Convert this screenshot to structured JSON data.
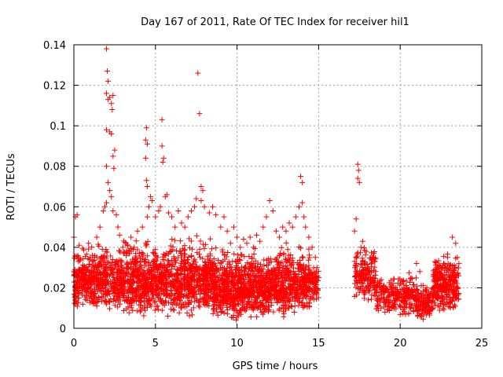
{
  "chart_data": {
    "type": "scatter",
    "title": "Day 167 of 2011, Rate Of TEC Index for receiver hil1",
    "xlabel": "GPS time / hours",
    "ylabel": "ROTI / TECUs",
    "xlim": [
      0,
      25
    ],
    "ylim": [
      0,
      0.14
    ],
    "xticks": [
      0,
      5,
      10,
      15,
      20,
      25
    ],
    "xtick_labels": [
      "0",
      "5",
      "10",
      "15",
      "20",
      "25"
    ],
    "yticks": [
      0,
      0.02,
      0.04,
      0.06,
      0.08,
      0.1,
      0.12,
      0.14
    ],
    "ytick_labels": [
      "0",
      "0.02",
      "0.04",
      "0.06",
      "0.08",
      "0.1",
      "0.12",
      "0.14"
    ],
    "grid": true,
    "marker": "+",
    "series": [
      {
        "name": "ROTI",
        "color": "#ff0000",
        "points": [
          [
            0.0,
            0.045
          ],
          [
            0.1,
            0.055
          ],
          [
            0.2,
            0.056
          ],
          [
            0.3,
            0.035
          ],
          [
            0.1,
            0.02
          ],
          [
            0.3,
            0.015
          ],
          [
            0.5,
            0.03
          ],
          [
            0.7,
            0.025
          ],
          [
            0.9,
            0.042
          ],
          [
            1.0,
            0.035
          ],
          [
            1.2,
            0.028
          ],
          [
            1.4,
            0.045
          ],
          [
            1.6,
            0.05
          ],
          [
            1.8,
            0.058
          ],
          [
            1.9,
            0.06
          ],
          [
            2.0,
            0.138
          ],
          [
            2.05,
            0.127
          ],
          [
            2.1,
            0.122
          ],
          [
            2.0,
            0.116
          ],
          [
            2.1,
            0.113
          ],
          [
            2.2,
            0.114
          ],
          [
            2.3,
            0.111
          ],
          [
            2.35,
            0.108
          ],
          [
            2.4,
            0.115
          ],
          [
            2.0,
            0.098
          ],
          [
            2.2,
            0.097
          ],
          [
            2.3,
            0.096
          ],
          [
            2.0,
            0.08
          ],
          [
            2.5,
            0.088
          ],
          [
            2.4,
            0.085
          ],
          [
            2.45,
            0.079
          ],
          [
            2.1,
            0.072
          ],
          [
            2.2,
            0.068
          ],
          [
            2.3,
            0.065
          ],
          [
            2.0,
            0.062
          ],
          [
            2.4,
            0.058
          ],
          [
            2.6,
            0.056
          ],
          [
            2.7,
            0.05
          ],
          [
            2.8,
            0.046
          ],
          [
            3.0,
            0.04
          ],
          [
            3.2,
            0.042
          ],
          [
            3.4,
            0.038
          ],
          [
            3.5,
            0.045
          ],
          [
            3.7,
            0.04
          ],
          [
            3.9,
            0.048
          ],
          [
            4.2,
            0.05
          ],
          [
            4.4,
            0.042
          ],
          [
            4.5,
            0.055
          ],
          [
            4.4,
            0.093
          ],
          [
            4.5,
            0.091
          ],
          [
            4.45,
            0.099
          ],
          [
            4.4,
            0.084
          ],
          [
            4.45,
            0.073
          ],
          [
            4.5,
            0.07
          ],
          [
            4.6,
            0.06
          ],
          [
            4.7,
            0.065
          ],
          [
            4.8,
            0.063
          ],
          [
            5.0,
            0.055
          ],
          [
            5.2,
            0.058
          ],
          [
            5.3,
            0.06
          ],
          [
            5.4,
            0.103
          ],
          [
            5.4,
            0.09
          ],
          [
            5.5,
            0.084
          ],
          [
            5.45,
            0.082
          ],
          [
            5.6,
            0.065
          ],
          [
            5.7,
            0.066
          ],
          [
            5.8,
            0.057
          ],
          [
            6.0,
            0.055
          ],
          [
            6.2,
            0.05
          ],
          [
            6.4,
            0.058
          ],
          [
            6.6,
            0.052
          ],
          [
            6.8,
            0.05
          ],
          [
            7.0,
            0.055
          ],
          [
            7.2,
            0.058
          ],
          [
            7.4,
            0.06
          ],
          [
            7.5,
            0.064
          ],
          [
            7.6,
            0.126
          ],
          [
            7.7,
            0.106
          ],
          [
            7.8,
            0.07
          ],
          [
            7.9,
            0.068
          ],
          [
            7.8,
            0.063
          ],
          [
            8.0,
            0.06
          ],
          [
            8.3,
            0.057
          ],
          [
            8.5,
            0.06
          ],
          [
            8.7,
            0.056
          ],
          [
            9.0,
            0.05
          ],
          [
            9.2,
            0.055
          ],
          [
            9.4,
            0.048
          ],
          [
            9.6,
            0.042
          ],
          [
            9.8,
            0.05
          ],
          [
            10.0,
            0.045
          ],
          [
            10.2,
            0.04
          ],
          [
            10.4,
            0.044
          ],
          [
            10.6,
            0.042
          ],
          [
            10.8,
            0.045
          ],
          [
            11.0,
            0.04
          ],
          [
            11.2,
            0.046
          ],
          [
            11.4,
            0.043
          ],
          [
            11.6,
            0.05
          ],
          [
            11.8,
            0.055
          ],
          [
            12.0,
            0.063
          ],
          [
            12.2,
            0.058
          ],
          [
            12.4,
            0.048
          ],
          [
            12.6,
            0.045
          ],
          [
            12.8,
            0.05
          ],
          [
            13.0,
            0.048
          ],
          [
            13.2,
            0.052
          ],
          [
            13.4,
            0.05
          ],
          [
            13.6,
            0.055
          ],
          [
            13.8,
            0.06
          ],
          [
            13.9,
            0.075
          ],
          [
            14.0,
            0.072
          ],
          [
            14.0,
            0.062
          ],
          [
            14.1,
            0.055
          ],
          [
            14.2,
            0.05
          ],
          [
            14.4,
            0.045
          ],
          [
            14.6,
            0.04
          ],
          [
            14.8,
            0.035
          ],
          [
            14.9,
            0.03
          ],
          [
            15.0,
            0.025
          ],
          [
            14.8,
            0.02
          ],
          [
            14.6,
            0.015
          ],
          [
            17.2,
            0.048
          ],
          [
            17.3,
            0.054
          ],
          [
            17.4,
            0.074
          ],
          [
            17.4,
            0.081
          ],
          [
            17.45,
            0.078
          ],
          [
            17.5,
            0.072
          ],
          [
            17.6,
            0.04
          ],
          [
            17.7,
            0.03
          ],
          [
            17.9,
            0.025
          ],
          [
            18.1,
            0.028
          ],
          [
            18.3,
            0.035
          ],
          [
            18.5,
            0.028
          ],
          [
            18.7,
            0.022
          ],
          [
            19.0,
            0.02
          ],
          [
            19.3,
            0.018
          ],
          [
            19.6,
            0.02
          ],
          [
            19.9,
            0.015
          ],
          [
            20.2,
            0.013
          ],
          [
            20.5,
            0.015
          ],
          [
            20.8,
            0.018
          ],
          [
            21.0,
            0.032
          ],
          [
            21.2,
            0.028
          ],
          [
            21.5,
            0.01
          ],
          [
            21.8,
            0.015
          ],
          [
            22.0,
            0.02
          ],
          [
            22.3,
            0.025
          ],
          [
            22.6,
            0.03
          ],
          [
            22.9,
            0.035
          ],
          [
            23.2,
            0.045
          ],
          [
            23.4,
            0.042
          ],
          [
            23.5,
            0.035
          ]
        ],
        "dense_bands": [
          {
            "x": [
              0.0,
              3.0
            ],
            "y": [
              0.008,
              0.045
            ]
          },
          {
            "x": [
              3.0,
              8.5
            ],
            "y": [
              0.005,
              0.048
            ]
          },
          {
            "x": [
              8.5,
              12.0
            ],
            "y": [
              0.003,
              0.042
            ]
          },
          {
            "x": [
              12.0,
              14.5
            ],
            "y": [
              0.005,
              0.045
            ]
          },
          {
            "x": [
              14.5,
              15.0
            ],
            "y": [
              0.012,
              0.035
            ]
          },
          {
            "x": [
              17.2,
              18.5
            ],
            "y": [
              0.012,
              0.045
            ]
          },
          {
            "x": [
              18.5,
              21.0
            ],
            "y": [
              0.005,
              0.03
            ]
          },
          {
            "x": [
              21.0,
              22.0
            ],
            "y": [
              0.003,
              0.025
            ]
          },
          {
            "x": [
              22.0,
              23.6
            ],
            "y": [
              0.007,
              0.04
            ]
          }
        ],
        "dense_band_point_counts": [
          550,
          1100,
          800,
          480,
          60,
          180,
          260,
          120,
          300
        ]
      }
    ]
  }
}
